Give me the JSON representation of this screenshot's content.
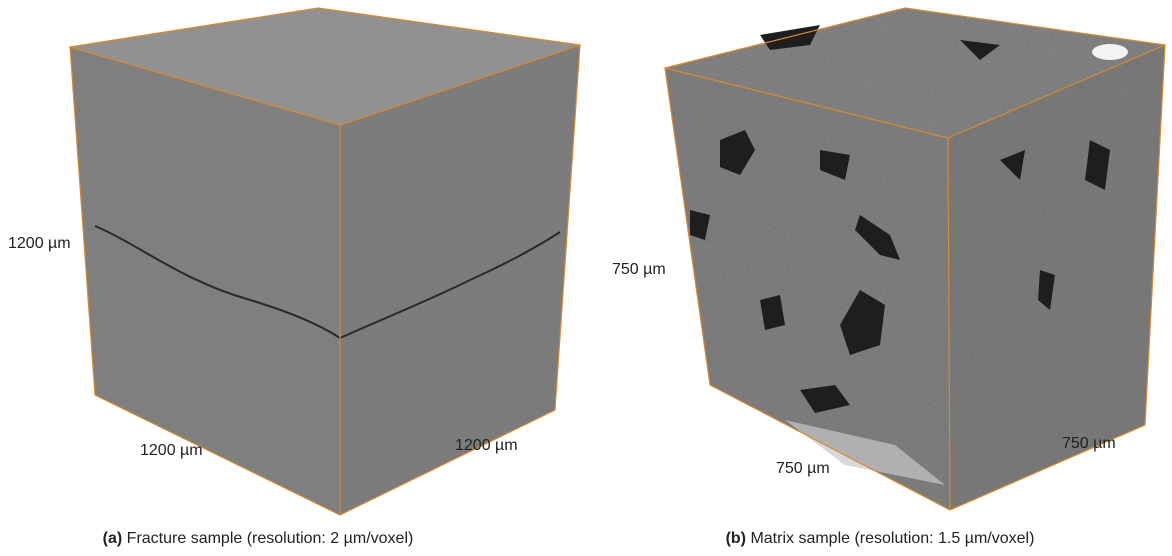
{
  "panels": [
    {
      "label": "(a)",
      "caption": "Fracture sample (resolution: 2 µm/voxel)",
      "height": "1200 µm",
      "depth": "1200 µm",
      "width": "1200 µm"
    },
    {
      "label": "(b)",
      "caption": "Matrix sample (resolution: 1.5 µm/voxel)",
      "height": "750 µm",
      "depth": "750 µm",
      "width": "750 µm"
    }
  ]
}
